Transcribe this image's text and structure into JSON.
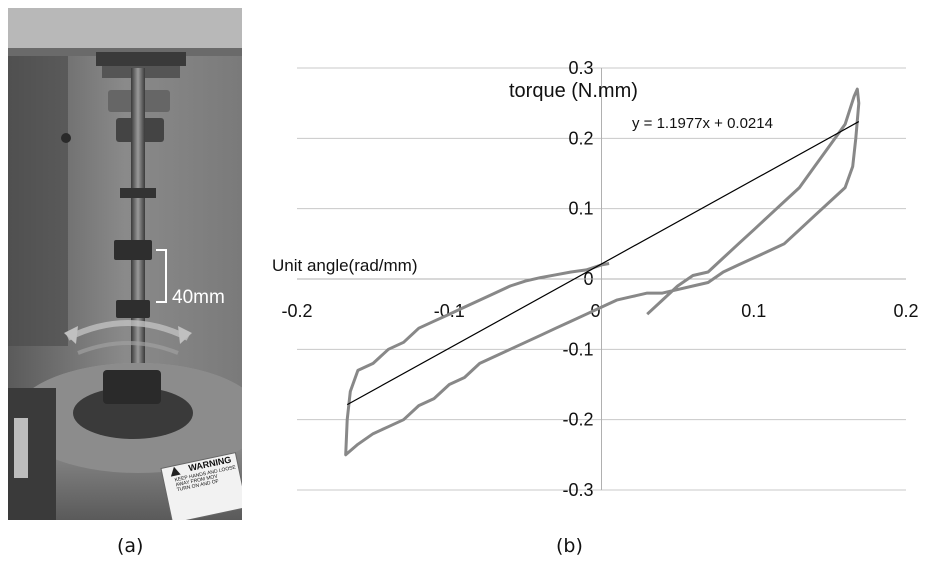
{
  "panel_a": {
    "dimension_label": "40mm",
    "warning_title": "WARNING",
    "warning_text": [
      "KEEP HANDS AND LOOSE",
      "AWAY FROM MOV",
      "TURN ON AND OF"
    ],
    "caption": "(a)"
  },
  "panel_b": {
    "caption": "(b)"
  },
  "chart_data": {
    "type": "line",
    "xlabel": "Unit angle(rad/mm)",
    "ylabel": "torque (N.mm)",
    "xlim": [
      -0.2,
      0.2
    ],
    "ylim": [
      -0.3,
      0.3
    ],
    "x_ticks": [
      "-0.2",
      "-0.1",
      "0",
      "0.1",
      "0.2"
    ],
    "y_ticks": [
      "0.3",
      "0.2",
      "0.1",
      "0",
      "-0.1",
      "-0.2",
      "-0.3"
    ],
    "grid": "horizontal",
    "trendline_equation": "y = 1.1977x + 0.0214",
    "trendline": {
      "slope": 1.1977,
      "intercept": 0.0214,
      "x_range": [
        -0.167,
        0.169
      ]
    },
    "colors": {
      "series": "#888888",
      "trendline": "#000000",
      "grid": "#c8c8c8"
    },
    "series": [
      {
        "points": [
          [
            0.03,
            -0.05
          ],
          [
            0.04,
            -0.03
          ],
          [
            0.05,
            -0.01
          ],
          [
            0.06,
            0.005
          ],
          [
            0.07,
            0.01
          ],
          [
            0.08,
            0.03
          ],
          [
            0.09,
            0.05
          ],
          [
            0.1,
            0.07
          ],
          [
            0.11,
            0.09
          ],
          [
            0.12,
            0.11
          ],
          [
            0.13,
            0.13
          ],
          [
            0.14,
            0.16
          ],
          [
            0.15,
            0.19
          ],
          [
            0.16,
            0.22
          ],
          [
            0.166,
            0.26
          ],
          [
            0.168,
            0.27
          ],
          [
            0.169,
            0.25
          ],
          [
            0.167,
            0.2
          ],
          [
            0.165,
            0.16
          ],
          [
            0.16,
            0.13
          ],
          [
            0.15,
            0.11
          ],
          [
            0.14,
            0.09
          ],
          [
            0.13,
            0.07
          ],
          [
            0.12,
            0.05
          ],
          [
            0.11,
            0.04
          ],
          [
            0.1,
            0.03
          ],
          [
            0.09,
            0.02
          ],
          [
            0.08,
            0.01
          ],
          [
            0.07,
            -0.005
          ],
          [
            0.06,
            -0.01
          ],
          [
            0.05,
            -0.015
          ],
          [
            0.04,
            -0.02
          ],
          [
            0.03,
            -0.02
          ],
          [
            0.02,
            -0.025
          ],
          [
            0.01,
            -0.03
          ],
          [
            0.0,
            -0.04
          ],
          [
            -0.01,
            -0.05
          ],
          [
            -0.02,
            -0.06
          ],
          [
            -0.03,
            -0.07
          ],
          [
            -0.04,
            -0.08
          ],
          [
            -0.05,
            -0.09
          ],
          [
            -0.06,
            -0.1
          ],
          [
            -0.07,
            -0.11
          ],
          [
            -0.08,
            -0.12
          ],
          [
            -0.09,
            -0.14
          ],
          [
            -0.1,
            -0.15
          ],
          [
            -0.11,
            -0.17
          ],
          [
            -0.12,
            -0.18
          ],
          [
            -0.13,
            -0.2
          ],
          [
            -0.14,
            -0.21
          ],
          [
            -0.15,
            -0.22
          ],
          [
            -0.16,
            -0.235
          ],
          [
            -0.168,
            -0.25
          ],
          [
            -0.167,
            -0.2
          ],
          [
            -0.165,
            -0.16
          ],
          [
            -0.16,
            -0.13
          ],
          [
            -0.15,
            -0.12
          ],
          [
            -0.14,
            -0.1
          ],
          [
            -0.13,
            -0.09
          ],
          [
            -0.12,
            -0.07
          ],
          [
            -0.11,
            -0.06
          ],
          [
            -0.1,
            -0.05
          ],
          [
            -0.09,
            -0.04
          ],
          [
            -0.08,
            -0.03
          ],
          [
            -0.07,
            -0.02
          ],
          [
            -0.06,
            -0.01
          ],
          [
            -0.05,
            -0.003
          ],
          [
            -0.04,
            0.002
          ],
          [
            -0.03,
            0.006
          ],
          [
            -0.02,
            0.01
          ],
          [
            -0.01,
            0.013
          ],
          [
            0.0,
            0.02
          ],
          [
            0.005,
            0.022
          ]
        ]
      }
    ]
  }
}
